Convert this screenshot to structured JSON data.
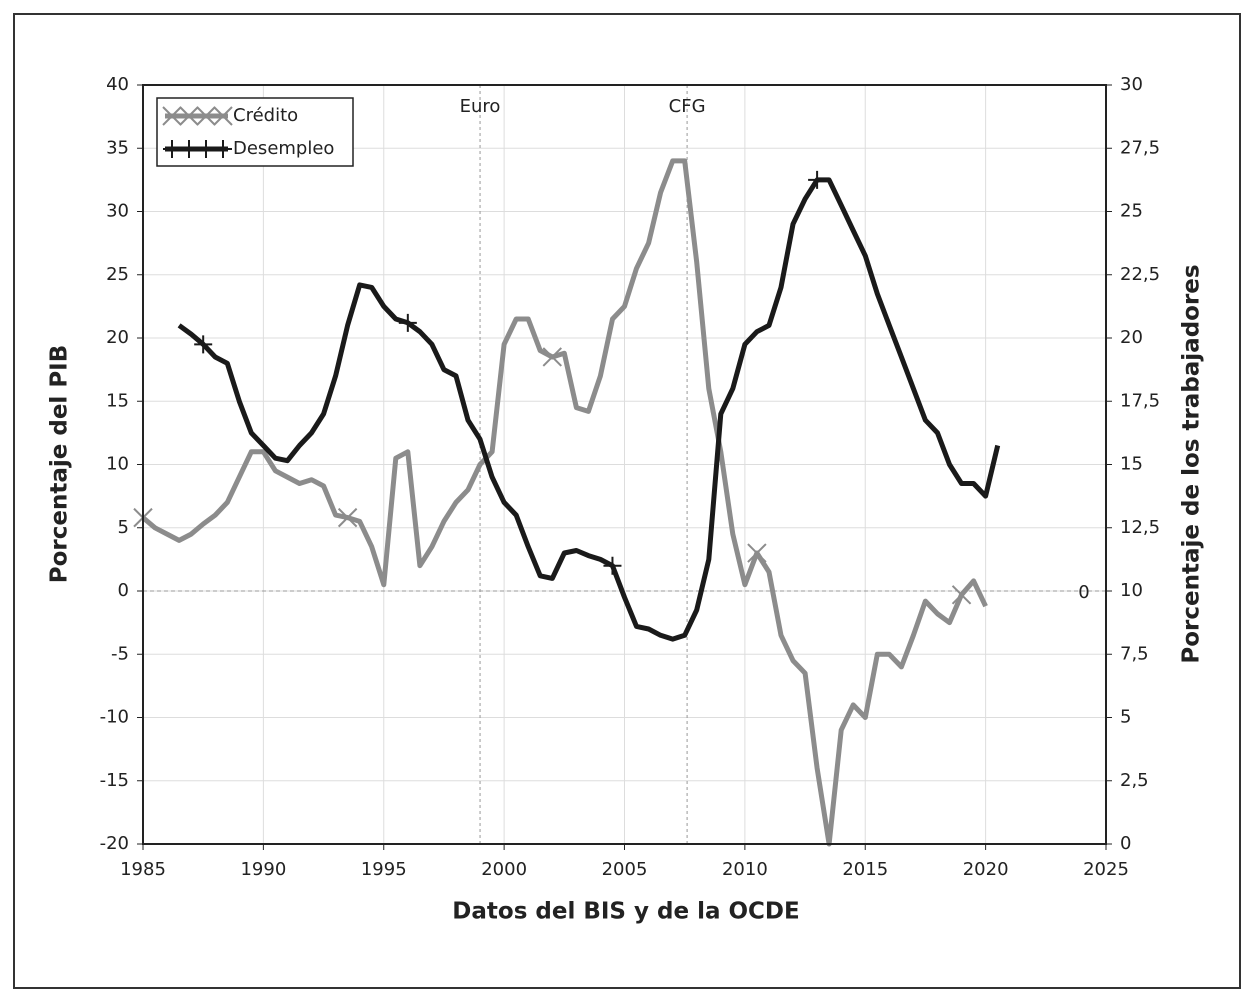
{
  "chart_data": {
    "type": "line",
    "xlabel": "Datos del BIS y de la OCDE",
    "ylabel": "Porcentaje del PIB",
    "y2label": "Porcentaje de los trabajadores",
    "x": [
      1985,
      1985.5,
      1986,
      1986.5,
      1987,
      1987.5,
      1988,
      1988.5,
      1989,
      1989.5,
      1990,
      1990.5,
      1991,
      1991.5,
      1992,
      1992.5,
      1993,
      1993.5,
      1994,
      1994.5,
      1995,
      1995.5,
      1996,
      1996.5,
      1997,
      1997.5,
      1998,
      1998.5,
      1999,
      1999.5,
      2000,
      2000.5,
      2001,
      2001.5,
      2002,
      2002.5,
      2003,
      2003.5,
      2004,
      2004.5,
      2005,
      2005.5,
      2006,
      2006.5,
      2007,
      2007.5,
      2008,
      2008.5,
      2009,
      2009.5,
      2010,
      2010.5,
      2011,
      2011.5,
      2012,
      2012.5,
      2013,
      2013.5,
      2014,
      2014.5,
      2015,
      2015.5,
      2016,
      2016.5,
      2017,
      2017.5,
      2018,
      2018.5,
      2019,
      2019.5,
      2020,
      2020.5
    ],
    "series": [
      {
        "name": "Crédito",
        "color": "#8c8c8c",
        "marker": "x",
        "axis": "y",
        "values": [
          5.8,
          5.0,
          4.5,
          4.0,
          4.5,
          5.3,
          6.0,
          7.0,
          9.0,
          11.0,
          11.0,
          9.5,
          9.0,
          8.5,
          8.8,
          8.3,
          6.0,
          5.8,
          5.5,
          3.5,
          0.5,
          10.5,
          11.0,
          2.0,
          3.5,
          5.5,
          7.0,
          8.0,
          10.0,
          11.0,
          19.5,
          21.5,
          21.5,
          19.0,
          18.5,
          18.8,
          14.5,
          14.2,
          17.0,
          21.5,
          22.5,
          25.5,
          27.5,
          31.5,
          34.0,
          34.0,
          26.0,
          16.0,
          11.0,
          4.5,
          0.5,
          3.0,
          1.5,
          -3.5,
          -5.5,
          -6.5,
          -14.0,
          -20.0,
          -11.0,
          -9.0,
          -10.0,
          -5.0,
          -5.0,
          -6.0,
          -3.5,
          -0.8,
          -1.8,
          -2.5,
          -0.3,
          0.8,
          -1.2,
          null
        ]
      },
      {
        "name": "Desempleo",
        "color": "#1a1a1a",
        "marker": "+",
        "axis": "y2",
        "values": [
          null,
          null,
          null,
          20.5,
          20.15,
          19.75,
          19.25,
          19.0,
          17.5,
          16.25,
          15.75,
          15.25,
          15.15,
          15.75,
          16.25,
          17.0,
          18.5,
          20.5,
          22.1,
          22.0,
          21.25,
          20.75,
          20.6,
          20.25,
          19.75,
          18.75,
          18.5,
          16.75,
          16.0,
          14.5,
          13.5,
          13.0,
          11.75,
          10.6,
          10.5,
          11.5,
          11.6,
          11.4,
          11.25,
          11.0,
          9.75,
          8.6,
          8.5,
          8.25,
          8.1,
          8.25,
          9.25,
          11.25,
          17.0,
          18.0,
          19.75,
          20.25,
          20.5,
          22.0,
          24.5,
          25.5,
          26.25,
          26.25,
          25.25,
          24.25,
          23.25,
          21.75,
          20.5,
          19.25,
          18.0,
          16.75,
          16.25,
          15.0,
          14.25,
          14.25,
          13.75,
          15.75
        ]
      }
    ],
    "xlim": [
      1985,
      2025
    ],
    "xticks": [
      1985,
      1990,
      1995,
      2000,
      2005,
      2010,
      2015,
      2020,
      2025
    ],
    "ylim": [
      -20,
      40
    ],
    "yticks": [
      -20,
      -15,
      -10,
      -5,
      0,
      5,
      10,
      15,
      20,
      25,
      30,
      35,
      40
    ],
    "y2lim": [
      0,
      30
    ],
    "y2ticks": [
      0,
      {
        "value": 2.5,
        "label": "2,5"
      },
      5,
      {
        "value": 7.5,
        "label": "7,5"
      },
      10,
      {
        "value": 12.5,
        "label": "12,5"
      },
      15,
      {
        "value": 17.5,
        "label": "17,5"
      },
      20,
      {
        "value": 22.5,
        "label": "22,5"
      },
      25,
      {
        "value": 27.5,
        "label": "27,5"
      },
      30
    ],
    "grid": true,
    "legend": "upper left",
    "annotations": [
      {
        "text": "Euro",
        "x": 1999
      },
      {
        "text": "CFG",
        "x": 2007.6
      },
      {
        "text": "0",
        "y": 0
      }
    ]
  }
}
